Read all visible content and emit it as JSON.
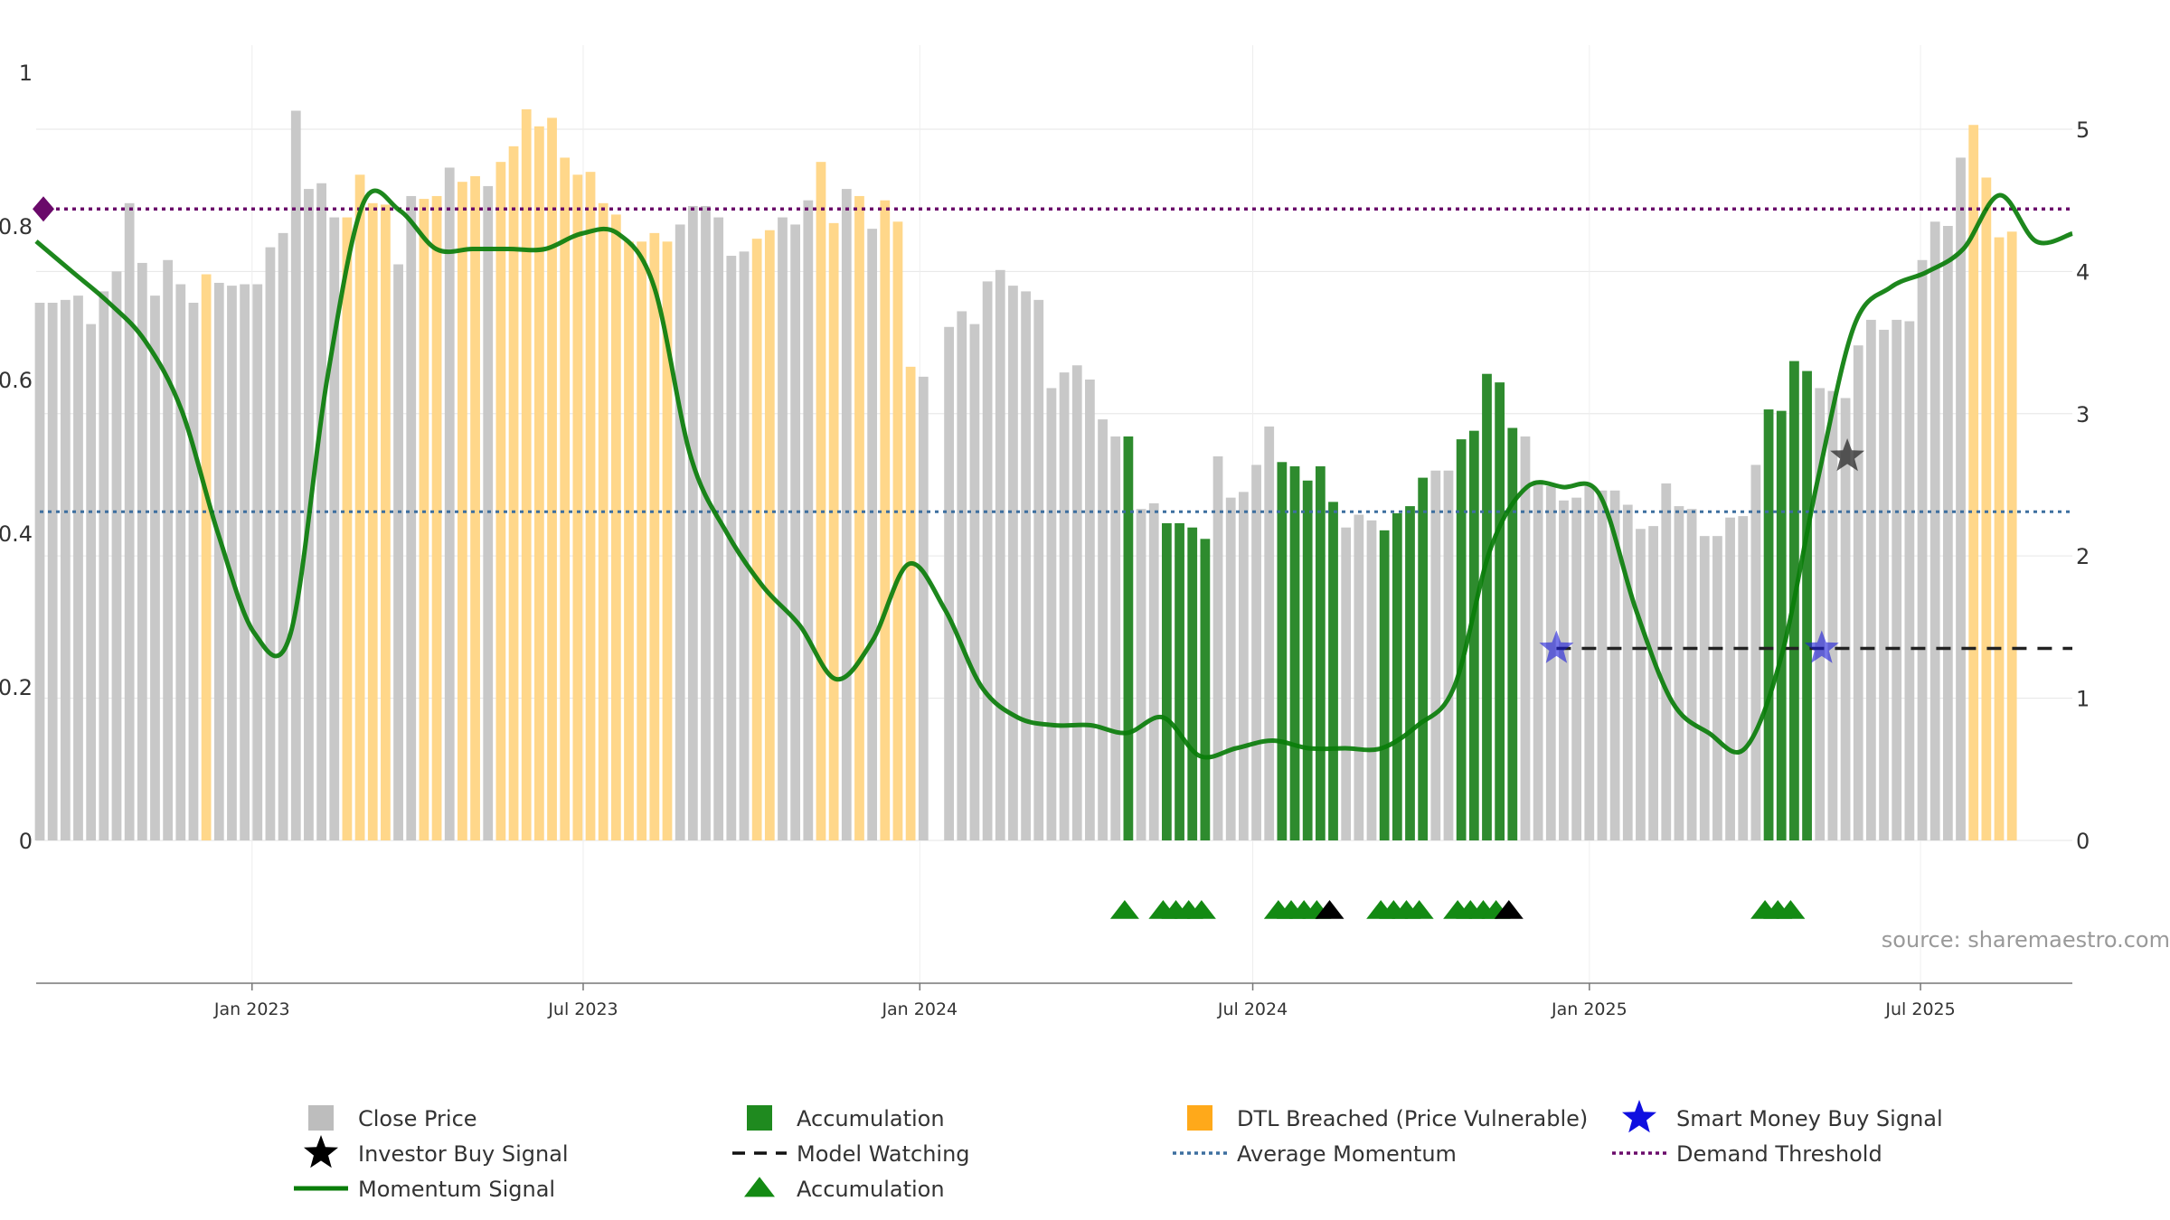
{
  "watermark": "source: sharemaestro.com",
  "colors": {
    "close_price": "#c8c8c8",
    "accumulation": "#2e8b2e",
    "dtl_breached": "#ffd78a",
    "momentum": "#0a7d0a",
    "average_momentum": "#3d6f9f",
    "demand_threshold": "#6a0a6a",
    "smart_money": "#1a1adb",
    "investor": "#000000",
    "model_watching": "#222222",
    "grid": "#e6e6e6"
  },
  "chart_data": {
    "type": "bar",
    "x_axis": {
      "start": "2022-09-05",
      "end": "2025-09-22",
      "ticks": [
        {
          "date": "2023-01-01",
          "label": "Jan 2023"
        },
        {
          "date": "2023-07-01",
          "label": "Jul 2023"
        },
        {
          "date": "2024-01-01",
          "label": "Jan 2024"
        },
        {
          "date": "2024-07-01",
          "label": "Jul 2024"
        },
        {
          "date": "2025-01-01",
          "label": "Jan 2025"
        },
        {
          "date": "2025-07-01",
          "label": "Jul 2025"
        }
      ]
    },
    "left_axis": {
      "ylim": [
        0,
        1
      ],
      "ticks": [
        0,
        0.2,
        0.4,
        0.6,
        0.8,
        1
      ],
      "tick_labels": [
        "0",
        "0.2",
        "0.4",
        "0.6",
        "0.8",
        "1"
      ]
    },
    "right_axis": {
      "ylim": [
        0,
        5.4
      ],
      "ticks": [
        0,
        1,
        2,
        3,
        4,
        5
      ],
      "tick_labels": [
        "0",
        "1",
        "2",
        "3",
        "4",
        "5"
      ]
    },
    "series": [
      {
        "name": "Close Price",
        "type": "bar",
        "axis": "right",
        "start": "2022-09-05",
        "values": [
          3.78,
          3.78,
          3.8,
          3.83,
          3.63,
          3.86,
          4.0,
          4.48,
          4.06,
          3.83,
          4.08,
          3.91,
          3.78,
          3.98,
          3.92,
          3.9,
          3.91,
          3.91,
          4.17,
          4.27,
          5.13,
          4.58,
          4.62,
          4.38,
          4.38,
          4.68,
          4.48,
          4.47,
          4.05,
          4.53,
          4.51,
          4.53,
          4.73,
          4.63,
          4.67,
          4.6,
          4.77,
          4.88,
          5.14,
          5.02,
          5.08,
          4.8,
          4.68,
          4.7,
          4.48,
          4.4,
          4.21,
          4.21,
          4.27,
          4.21,
          4.33,
          4.46,
          4.46,
          4.38,
          4.11,
          4.14,
          4.23,
          4.29,
          4.38,
          4.33,
          4.5,
          4.77,
          4.34,
          4.58,
          4.53,
          4.3,
          4.5,
          4.35,
          3.33,
          3.26,
          0,
          3.61,
          3.72,
          3.63,
          3.93,
          4.01,
          3.9,
          3.86,
          3.8,
          3.18,
          3.29,
          3.34,
          3.24,
          2.96,
          2.84,
          2.84,
          2.33,
          2.37,
          2.23,
          2.23,
          2.2,
          2.12,
          2.7,
          2.41,
          2.45,
          2.64,
          2.91,
          2.66,
          2.63,
          2.53,
          2.63,
          2.38,
          2.2,
          2.29,
          2.25,
          2.18,
          2.3,
          2.35,
          2.55,
          2.6,
          2.6,
          2.82,
          2.88,
          3.28,
          3.22,
          2.9,
          2.84,
          2.53,
          2.49,
          2.39,
          2.41,
          2.49,
          2.46,
          2.46,
          2.36,
          2.19,
          2.21,
          2.51,
          2.35,
          2.33,
          2.14,
          2.14,
          2.27,
          2.28,
          2.64,
          3.03,
          3.02,
          3.37,
          3.3,
          3.18,
          3.16,
          3.11,
          3.48,
          3.66,
          3.59,
          3.66,
          3.65,
          4.08,
          4.35,
          4.32,
          4.8,
          5.03,
          4.66,
          4.24,
          4.28
        ]
      },
      {
        "name": "Momentum Signal",
        "type": "line",
        "axis": "left",
        "start": "2022-09-05",
        "values": [
          0.78,
          0.74,
          0.7,
          0.65,
          0.56,
          0.4,
          0.27,
          0.27,
          0.6,
          0.83,
          0.82,
          0.77,
          0.77,
          0.77,
          0.77,
          0.79,
          0.79,
          0.72,
          0.5,
          0.4,
          0.33,
          0.28,
          0.21,
          0.26,
          0.36,
          0.3,
          0.2,
          0.16,
          0.15,
          0.15,
          0.14,
          0.16,
          0.11,
          0.12,
          0.13,
          0.12,
          0.12,
          0.12,
          0.15,
          0.2,
          0.38,
          0.46,
          0.46,
          0.45,
          0.3,
          0.18,
          0.14,
          0.12,
          0.24,
          0.47,
          0.67,
          0.72,
          0.74,
          0.77,
          0.84,
          0.78,
          0.79
        ]
      },
      {
        "name": "Average Momentum",
        "type": "line",
        "axis": "left",
        "values": [
          0.428,
          0.428
        ]
      },
      {
        "name": "Demand Threshold",
        "type": "line",
        "axis": "left",
        "values": [
          0.822,
          0.822
        ]
      },
      {
        "name": "Model Watching",
        "type": "line",
        "axis": "left",
        "x": [
          "2024-12-14",
          "2025-09-22"
        ],
        "values": [
          0.25,
          0.25
        ]
      },
      {
        "name": "Smart Money Buy Signal",
        "type": "scatter",
        "axis": "left",
        "x": [
          "2024-12-14",
          "2025-05-08"
        ],
        "values": [
          0.25,
          0.25
        ]
      },
      {
        "name": "Investor Buy Signal",
        "type": "scatter",
        "axis": "left",
        "x": [
          "2025-05-22"
        ],
        "values": [
          0.5
        ]
      },
      {
        "name": "Accumulation",
        "type": "marker",
        "x": [
          "2024-04-22",
          "2024-05-13",
          "2024-05-20",
          "2024-05-27",
          "2024-06-03",
          "2024-07-15",
          "2024-07-22",
          "2024-07-29",
          "2024-08-05",
          "2024-09-09",
          "2024-09-16",
          "2024-09-23",
          "2024-09-30",
          "2024-10-21",
          "2024-10-28",
          "2024-11-04",
          "2024-11-11",
          "2025-04-07",
          "2025-04-14",
          "2025-04-21"
        ]
      },
      {
        "name": "Investor Buy Signal",
        "type": "marker",
        "x": [
          "2024-08-12",
          "2024-11-18"
        ]
      }
    ],
    "demand_threshold_marker": {
      "value": 0.822
    },
    "title": "",
    "xlabel": "",
    "ylabel": ""
  },
  "legend": {
    "items": [
      {
        "label": "Close Price",
        "icon": "gray-square-icon"
      },
      {
        "label": "Accumulation",
        "icon": "green-square-icon"
      },
      {
        "label": "DTL Breached (Price Vulnerable)",
        "icon": "orange-square-icon"
      },
      {
        "label": "Smart Money Buy Signal",
        "icon": "blue-star-icon"
      },
      {
        "label": "Investor Buy Signal",
        "icon": "black-star-icon"
      },
      {
        "label": "Model Watching",
        "icon": "dashed-line-icon"
      },
      {
        "label": "Average Momentum",
        "icon": "blue-dotted-line-icon"
      },
      {
        "label": "Demand Threshold",
        "icon": "purple-dotted-line-icon"
      },
      {
        "label": "Momentum Signal",
        "icon": "green-line-icon"
      },
      {
        "label": "Accumulation",
        "icon": "green-triangle-icon"
      }
    ]
  }
}
